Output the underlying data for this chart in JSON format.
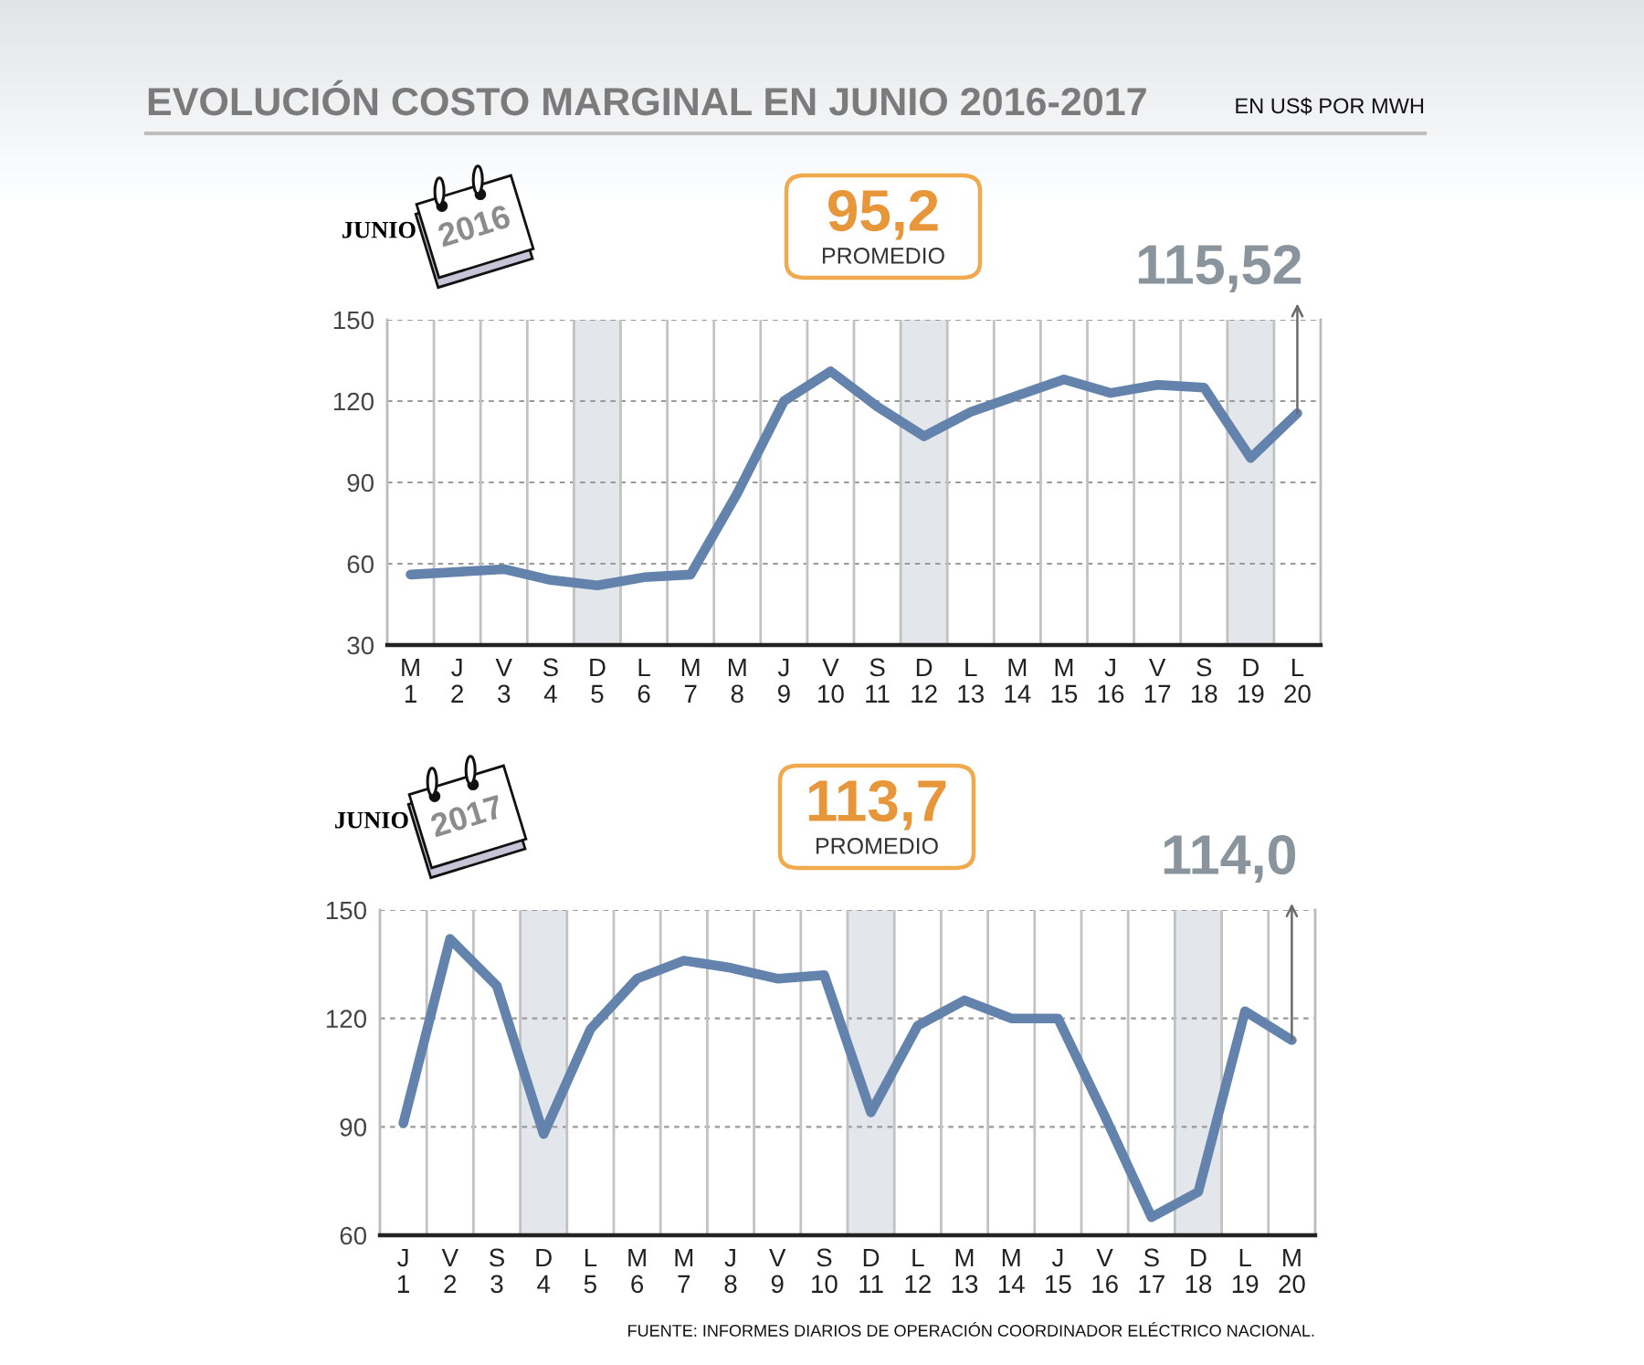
{
  "chart_data": [
    {
      "type": "line",
      "title": "EVOLUCIÓN COSTO MARGINAL EN JUNIO 2016-2017",
      "subtitle": "EN US$ POR MWH",
      "annotations": [
        "JUNIO",
        "2016",
        "95,2",
        "PROMEDIO"
      ],
      "categories": [
        "M\n1",
        "J\n2",
        "V\n3",
        "S\n4",
        "D\n5",
        "L\n6",
        "M\n7",
        "M\n8",
        "J\n9",
        "V\n10",
        "S\n11",
        "D\n12",
        "L\n13",
        "M\n14",
        "M\n15",
        "J\n16",
        "V\n17",
        "S\n18",
        "D\n19",
        "L\n20"
      ],
      "series": [
        {
          "color": "#6383ad",
          "values": [
            56,
            57,
            58,
            54,
            52,
            55,
            56,
            86,
            120,
            131,
            118,
            107,
            116,
            122,
            128,
            123,
            126,
            125,
            99,
            115.52
          ],
          "value_labels": [
            null,
            null,
            null,
            null,
            null,
            null,
            null,
            null,
            null,
            null,
            null,
            null,
            null,
            null,
            null,
            null,
            null,
            null,
            null,
            "115,52"
          ]
        }
      ],
      "ylim": [
        30,
        150
      ],
      "yticks": [
        30,
        60,
        90,
        120,
        150
      ],
      "grid": true,
      "bands": [
        {
          "axis": "x",
          "from": "D\n5",
          "to": "D\n5",
          "color": "#e3e6eb"
        },
        {
          "axis": "x",
          "from": "D\n12",
          "to": "D\n12",
          "color": "#e3e6eb"
        },
        {
          "axis": "x",
          "from": "D\n19",
          "to": "D\n19",
          "color": "#e3e6eb"
        }
      ]
    },
    {
      "type": "line",
      "annotations": [
        "JUNIO",
        "2017",
        "113,7",
        "PROMEDIO",
        "FUENTE: INFORMES DIARIOS DE OPERACIÓN COORDINADOR ELÉCTRICO NACIONAL."
      ],
      "categories": [
        "J\n1",
        "V\n2",
        "S\n3",
        "D\n4",
        "L\n5",
        "M\n6",
        "M\n7",
        "J\n8",
        "V\n9",
        "S\n10",
        "D\n11",
        "L\n12",
        "M\n13",
        "M\n14",
        "J\n15",
        "V\n16",
        "S\n17",
        "D\n18",
        "L\n19",
        "M\n20"
      ],
      "series": [
        {
          "color": "#6383ad",
          "values": [
            91,
            142,
            129,
            88,
            117,
            131,
            136,
            134,
            131,
            132,
            94,
            118,
            125,
            120,
            120,
            93,
            65,
            72,
            122,
            114.0
          ],
          "value_labels": [
            null,
            null,
            null,
            null,
            null,
            null,
            null,
            null,
            null,
            null,
            null,
            null,
            null,
            null,
            null,
            null,
            null,
            null,
            null,
            "114,0"
          ]
        }
      ],
      "ylim": [
        60,
        150
      ],
      "yticks": [
        60,
        90,
        120,
        150
      ],
      "grid": true,
      "bands": [
        {
          "axis": "x",
          "from": "D\n4",
          "to": "D\n4",
          "color": "#e3e6eb"
        },
        {
          "axis": "x",
          "from": "D\n11",
          "to": "D\n11",
          "color": "#e3e6eb"
        },
        {
          "axis": "x",
          "from": "D\n18",
          "to": "D\n18",
          "color": "#e3e6eb"
        }
      ]
    }
  ]
}
